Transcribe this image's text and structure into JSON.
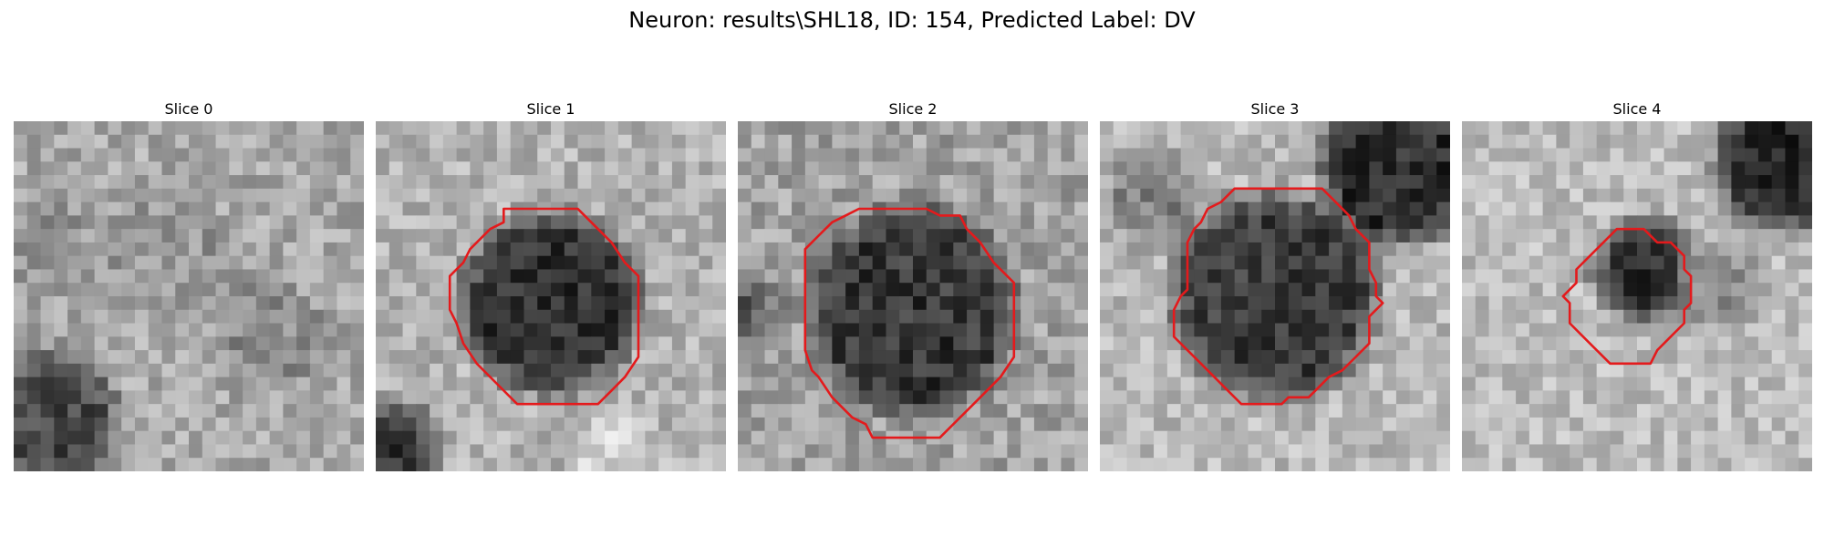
{
  "figure": {
    "title": "Neuron: results\\SHL18, ID: 154, Predicted Label: DV"
  },
  "contour_color": "#e41a1c",
  "panels": [
    {
      "title": "Slice 0",
      "image": {
        "grid": 26,
        "base": 168,
        "noise": 34,
        "seed": 11,
        "blobs": [
          {
            "cx": 3,
            "cy": 22,
            "r": 4.5,
            "v": 70
          },
          {
            "cx": 19,
            "cy": 16,
            "r": 4,
            "v": 140
          },
          {
            "cx": 11,
            "cy": 10,
            "r": 5,
            "v": 150
          },
          {
            "cx": 2,
            "cy": 9,
            "r": 3,
            "v": 140
          }
        ]
      },
      "contour": null
    },
    {
      "title": "Slice 1",
      "image": {
        "grid": 26,
        "base": 178,
        "noise": 32,
        "seed": 23,
        "blobs": [
          {
            "cx": 13,
            "cy": 13.5,
            "r": 6.5,
            "v": 50
          },
          {
            "cx": 1,
            "cy": 24.5,
            "r": 3.5,
            "v": 55
          },
          {
            "cx": 18,
            "cy": 25,
            "r": 3,
            "v": 215
          }
        ]
      },
      "contour": [
        [
          9.5,
          6.5
        ],
        [
          15,
          6.5
        ],
        [
          16.5,
          8
        ],
        [
          17.5,
          9
        ],
        [
          18.5,
          10.5
        ],
        [
          19.5,
          11.5
        ],
        [
          19.5,
          17.5
        ],
        [
          18.5,
          19
        ],
        [
          17.5,
          20
        ],
        [
          16.5,
          21
        ],
        [
          10.5,
          21
        ],
        [
          9,
          19.5
        ],
        [
          7.5,
          18
        ],
        [
          6.5,
          16.5
        ],
        [
          6,
          15
        ],
        [
          5.5,
          14
        ],
        [
          5.5,
          11.5
        ],
        [
          6.5,
          10.5
        ],
        [
          7,
          9.5
        ],
        [
          8.5,
          8
        ],
        [
          9.5,
          7.5
        ]
      ]
    },
    {
      "title": "Slice 2",
      "image": {
        "grid": 26,
        "base": 162,
        "noise": 36,
        "seed": 37,
        "blobs": [
          {
            "cx": 13,
            "cy": 14,
            "r": 7.5,
            "v": 55
          },
          {
            "cx": 0.5,
            "cy": 14,
            "r": 2.5,
            "v": 90
          }
        ]
      },
      "contour": [
        [
          9,
          6.5
        ],
        [
          14,
          6.5
        ],
        [
          15,
          7
        ],
        [
          16.5,
          7
        ],
        [
          17,
          8
        ],
        [
          18,
          9
        ],
        [
          19,
          10.5
        ],
        [
          20.5,
          12
        ],
        [
          20.5,
          17.5
        ],
        [
          19.5,
          19
        ],
        [
          18.5,
          20
        ],
        [
          17.5,
          21
        ],
        [
          16,
          22.5
        ],
        [
          15,
          23.5
        ],
        [
          10,
          23.5
        ],
        [
          9.5,
          22.5
        ],
        [
          8.5,
          22
        ],
        [
          7,
          20.5
        ],
        [
          6,
          19
        ],
        [
          5.5,
          18.5
        ],
        [
          5,
          17
        ],
        [
          5,
          9.5
        ],
        [
          6,
          8.5
        ],
        [
          7,
          7.5
        ],
        [
          8,
          7
        ]
      ]
    },
    {
      "title": "Slice 3",
      "image": {
        "grid": 26,
        "base": 185,
        "noise": 32,
        "seed": 51,
        "blobs": [
          {
            "cx": 13,
            "cy": 13,
            "r": 7.5,
            "v": 60
          },
          {
            "cx": 22,
            "cy": 3.5,
            "r": 5.5,
            "v": 45
          },
          {
            "cx": 4,
            "cy": 5.5,
            "r": 3.5,
            "v": 130
          }
        ]
      },
      "contour": [
        [
          10,
          5
        ],
        [
          16.5,
          5
        ],
        [
          17.5,
          6
        ],
        [
          18.5,
          7
        ],
        [
          19,
          8
        ],
        [
          20,
          9
        ],
        [
          20,
          11
        ],
        [
          20.5,
          12
        ],
        [
          20.5,
          13
        ],
        [
          21,
          13.5
        ],
        [
          20.5,
          14
        ],
        [
          20,
          14.5
        ],
        [
          20,
          16.5
        ],
        [
          19,
          17.5
        ],
        [
          18,
          18.5
        ],
        [
          17,
          19
        ],
        [
          16,
          20
        ],
        [
          15.5,
          20.5
        ],
        [
          14,
          20.5
        ],
        [
          13.5,
          21
        ],
        [
          10.5,
          21
        ],
        [
          9.5,
          20
        ],
        [
          8.5,
          19
        ],
        [
          7.5,
          18
        ],
        [
          6.5,
          17
        ],
        [
          5.5,
          16
        ],
        [
          5.5,
          14
        ],
        [
          6,
          13
        ],
        [
          6.5,
          12.5
        ],
        [
          6.5,
          9
        ],
        [
          7,
          8
        ],
        [
          7.5,
          7.5
        ],
        [
          8,
          6.5
        ],
        [
          9,
          6
        ]
      ]
    },
    {
      "title": "Slice 4",
      "image": {
        "grid": 26,
        "base": 188,
        "noise": 30,
        "seed": 67,
        "blobs": [
          {
            "cx": 13.5,
            "cy": 11,
            "r": 3.5,
            "v": 45
          },
          {
            "cx": 24,
            "cy": 3,
            "r": 5,
            "v": 40
          },
          {
            "cx": 19,
            "cy": 12,
            "r": 3,
            "v": 140
          }
        ]
      },
      "contour": [
        [
          11.5,
          8
        ],
        [
          13.5,
          8
        ],
        [
          14.5,
          9
        ],
        [
          15.5,
          9
        ],
        [
          16.5,
          10
        ],
        [
          16.5,
          11
        ],
        [
          17,
          11.5
        ],
        [
          17,
          13.5
        ],
        [
          16.5,
          14
        ],
        [
          16.5,
          15
        ],
        [
          15.5,
          16
        ],
        [
          14.5,
          17
        ],
        [
          14,
          18
        ],
        [
          11,
          18
        ],
        [
          10,
          17
        ],
        [
          9,
          16
        ],
        [
          8,
          15
        ],
        [
          8,
          13.5
        ],
        [
          7.5,
          13
        ],
        [
          8,
          12.5
        ],
        [
          8.5,
          12
        ],
        [
          8.5,
          11
        ],
        [
          9.5,
          10
        ],
        [
          10.5,
          9
        ]
      ]
    }
  ]
}
